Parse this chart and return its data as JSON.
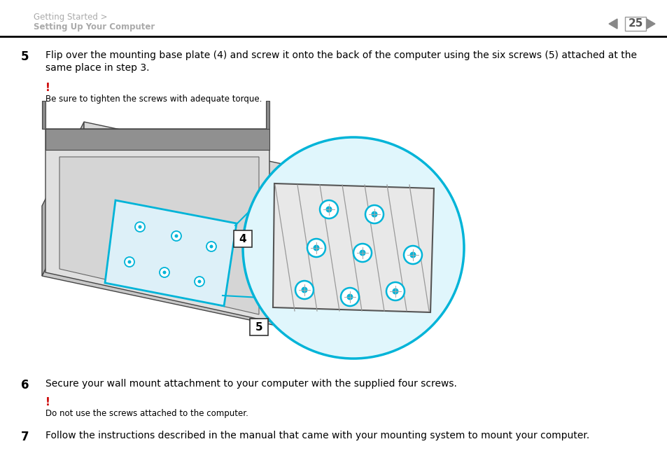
{
  "bg_color": "#ffffff",
  "header_breadcrumb_line1": "Getting Started >",
  "header_breadcrumb_line2": "Setting Up Your Computer",
  "header_breadcrumb_color": "#aaaaaa",
  "page_number": "25",
  "page_number_color": "#555555",
  "separator_color": "#000000",
  "step5_number": "5",
  "step5_text_line1": "Flip over the mounting base plate (4) and screw it onto the back of the computer using the six screws (5) attached at the",
  "step5_text_line2": "same place in step 3.",
  "exclamation_color": "#cc0000",
  "warning1_text": "Be sure to tighten the screws with adequate torque.",
  "step6_number": "6",
  "step6_text": "Secure your wall mount attachment to your computer with the supplied four screws.",
  "warning2_text": "Do not use the screws attached to the computer.",
  "step7_number": "7",
  "step7_text": "Follow the instructions described in the manual that came with your mounting system to mount your computer.",
  "text_color": "#000000",
  "small_text_color": "#333333",
  "arrow_color": "#888888",
  "cyan_color": "#00b4d8",
  "cyan_light": "#e0f6fc"
}
